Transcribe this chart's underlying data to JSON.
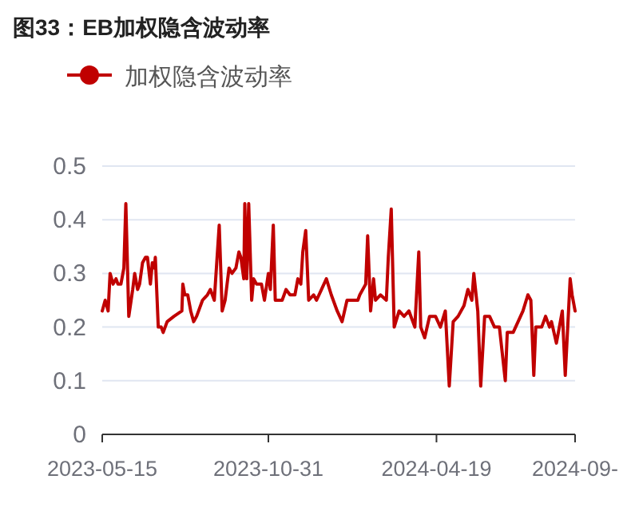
{
  "chart_data": {
    "type": "line",
    "title": "图33：EB加权隐含波动率",
    "x": [
      "2023-05-15",
      "2023-05-18",
      "2023-05-21",
      "2023-05-23",
      "2023-05-26",
      "2023-05-29",
      "2023-05-31",
      "2023-06-03",
      "2023-06-06",
      "2023-06-08",
      "2023-06-11",
      "2023-06-15",
      "2023-06-17",
      "2023-06-20",
      "2023-06-22",
      "2023-06-25",
      "2023-06-28",
      "2023-06-30",
      "2023-07-03",
      "2023-07-05",
      "2023-07-07",
      "2023-07-08",
      "2023-07-11",
      "2023-07-14",
      "2023-07-16",
      "2023-07-20",
      "2023-07-27",
      "2023-08-04",
      "2023-08-05",
      "2023-08-07",
      "2023-08-10",
      "2023-08-13",
      "2023-08-16",
      "2023-08-19",
      "2023-08-25",
      "2023-08-30",
      "2023-09-02",
      "2023-09-06",
      "2023-09-11",
      "2023-09-14",
      "2023-09-17",
      "2023-09-21",
      "2023-09-24",
      "2023-09-28",
      "2023-10-01",
      "2023-10-03",
      "2023-10-06",
      "2023-10-07",
      "2023-10-09",
      "2023-10-11",
      "2023-10-14",
      "2023-10-16",
      "2023-10-19",
      "2023-10-24",
      "2023-10-27",
      "2023-10-31",
      "2023-11-02",
      "2023-11-05",
      "2023-11-07",
      "2023-11-14",
      "2023-11-18",
      "2023-11-22",
      "2023-11-27",
      "2023-11-30",
      "2023-12-03",
      "2023-12-05",
      "2023-12-08",
      "2023-12-11",
      "2023-12-16",
      "2023-12-19",
      "2023-12-24",
      "2023-12-29",
      "2024-01-03",
      "2024-01-09",
      "2024-01-14",
      "2024-01-19",
      "2024-01-24",
      "2024-01-30",
      "2024-02-01",
      "2024-02-07",
      "2024-02-09",
      "2024-02-12",
      "2024-02-15",
      "2024-02-17",
      "2024-02-22",
      "2024-02-28",
      "2024-03-01",
      "2024-03-04",
      "2024-03-07",
      "2024-03-12",
      "2024-03-17",
      "2024-03-22",
      "2024-03-28",
      "2024-04-01",
      "2024-04-03",
      "2024-04-07",
      "2024-04-12",
      "2024-04-18",
      "2024-04-23",
      "2024-04-28",
      "2024-05-02",
      "2024-05-06",
      "2024-05-11",
      "2024-05-17",
      "2024-05-21",
      "2024-05-25",
      "2024-05-27",
      "2024-05-31",
      "2024-06-03",
      "2024-06-07",
      "2024-06-12",
      "2024-06-17",
      "2024-06-22",
      "2024-06-28",
      "2024-06-30",
      "2024-07-06",
      "2024-07-11",
      "2024-07-16",
      "2024-07-21",
      "2024-07-24",
      "2024-07-27",
      "2024-07-29",
      "2024-08-04",
      "2024-08-08",
      "2024-08-12",
      "2024-08-14",
      "2024-08-19",
      "2024-08-25",
      "2024-08-28",
      "2024-09-02",
      "2024-09-04",
      "2024-09-07"
    ],
    "series": [
      {
        "name": "加权隐含波动率",
        "color": "#c00000",
        "values": [
          0.23,
          0.25,
          0.23,
          0.3,
          0.28,
          0.29,
          0.28,
          0.28,
          0.31,
          0.43,
          0.22,
          0.27,
          0.3,
          0.27,
          0.28,
          0.32,
          0.33,
          0.33,
          0.28,
          0.32,
          0.31,
          0.33,
          0.2,
          0.2,
          0.19,
          0.21,
          0.22,
          0.23,
          0.28,
          0.26,
          0.26,
          0.23,
          0.21,
          0.22,
          0.25,
          0.26,
          0.27,
          0.25,
          0.39,
          0.23,
          0.25,
          0.31,
          0.3,
          0.31,
          0.34,
          0.33,
          0.29,
          0.43,
          0.29,
          0.43,
          0.25,
          0.29,
          0.28,
          0.28,
          0.25,
          0.3,
          0.27,
          0.39,
          0.25,
          0.25,
          0.27,
          0.26,
          0.26,
          0.29,
          0.28,
          0.34,
          0.38,
          0.25,
          0.26,
          0.25,
          0.27,
          0.29,
          0.26,
          0.23,
          0.21,
          0.25,
          0.25,
          0.25,
          0.26,
          0.28,
          0.37,
          0.23,
          0.29,
          0.25,
          0.26,
          0.25,
          0.33,
          0.42,
          0.2,
          0.23,
          0.22,
          0.23,
          0.2,
          0.34,
          0.2,
          0.18,
          0.22,
          0.22,
          0.2,
          0.23,
          0.09,
          0.21,
          0.22,
          0.24,
          0.27,
          0.25,
          0.3,
          0.23,
          0.09,
          0.22,
          0.22,
          0.2,
          0.2,
          0.1,
          0.19,
          0.19,
          0.21,
          0.23,
          0.26,
          0.25,
          0.11,
          0.2,
          0.2,
          0.22,
          0.2,
          0.21,
          0.17,
          0.23,
          0.11,
          0.29,
          0.26,
          0.23
        ]
      }
    ],
    "xlim": [
      "2023-05-15",
      "2024-09-07"
    ],
    "xticks": [
      "2023-05-15",
      "2023-10-31",
      "2024-04-19",
      {
        "value": "2024-09-07",
        "label": "2024-09-"
      }
    ],
    "ylim": [
      0,
      0.5
    ],
    "yticks": [
      0,
      0.1,
      0.2,
      0.3,
      0.4,
      0.5
    ],
    "grid": "y",
    "legend": "top left"
  }
}
